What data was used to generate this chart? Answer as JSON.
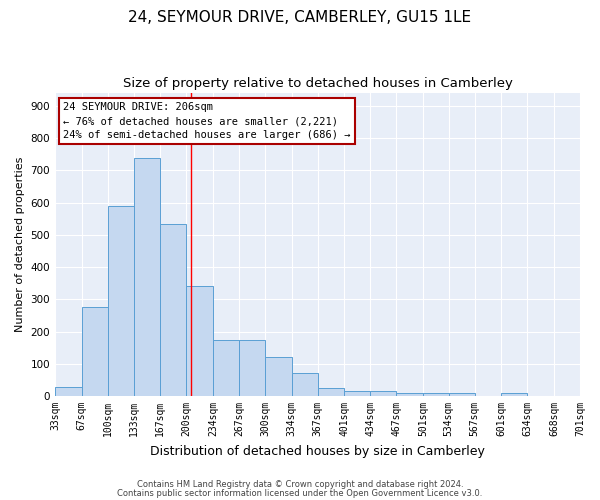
{
  "title": "24, SEYMOUR DRIVE, CAMBERLEY, GU15 1LE",
  "subtitle": "Size of property relative to detached houses in Camberley",
  "xlabel": "Distribution of detached houses by size in Camberley",
  "ylabel": "Number of detached properties",
  "bar_heights": [
    27,
    275,
    590,
    740,
    535,
    340,
    175,
    175,
    120,
    70,
    25,
    15,
    15,
    10,
    10,
    10,
    0,
    10,
    0,
    0
  ],
  "bin_edges": [
    33,
    67,
    100,
    133,
    167,
    200,
    234,
    267,
    300,
    334,
    367,
    401,
    434,
    467,
    501,
    534,
    567,
    601,
    634,
    668,
    701
  ],
  "tick_labels": [
    "33sqm",
    "67sqm",
    "100sqm",
    "133sqm",
    "167sqm",
    "200sqm",
    "234sqm",
    "267sqm",
    "300sqm",
    "334sqm",
    "367sqm",
    "401sqm",
    "434sqm",
    "467sqm",
    "501sqm",
    "534sqm",
    "567sqm",
    "601sqm",
    "634sqm",
    "668sqm",
    "701sqm"
  ],
  "bar_color": "#c5d8f0",
  "bar_edge_color": "#5a9fd4",
  "red_line_x": 206,
  "annotation_line1": "24 SEYMOUR DRIVE: 206sqm",
  "annotation_line2": "← 76% of detached houses are smaller (2,221)",
  "annotation_line3": "24% of semi-detached houses are larger (686) →",
  "background_color": "#e8eef8",
  "grid_color": "#ffffff",
  "ylim": [
    0,
    940
  ],
  "yticks": [
    0,
    100,
    200,
    300,
    400,
    500,
    600,
    700,
    800,
    900
  ],
  "footer_line1": "Contains HM Land Registry data © Crown copyright and database right 2024.",
  "footer_line2": "Contains public sector information licensed under the Open Government Licence v3.0.",
  "title_fontsize": 11,
  "subtitle_fontsize": 9.5,
  "xlabel_fontsize": 9,
  "ylabel_fontsize": 8,
  "tick_fontsize": 7,
  "annotation_fontsize": 7.5,
  "footer_fontsize": 6
}
